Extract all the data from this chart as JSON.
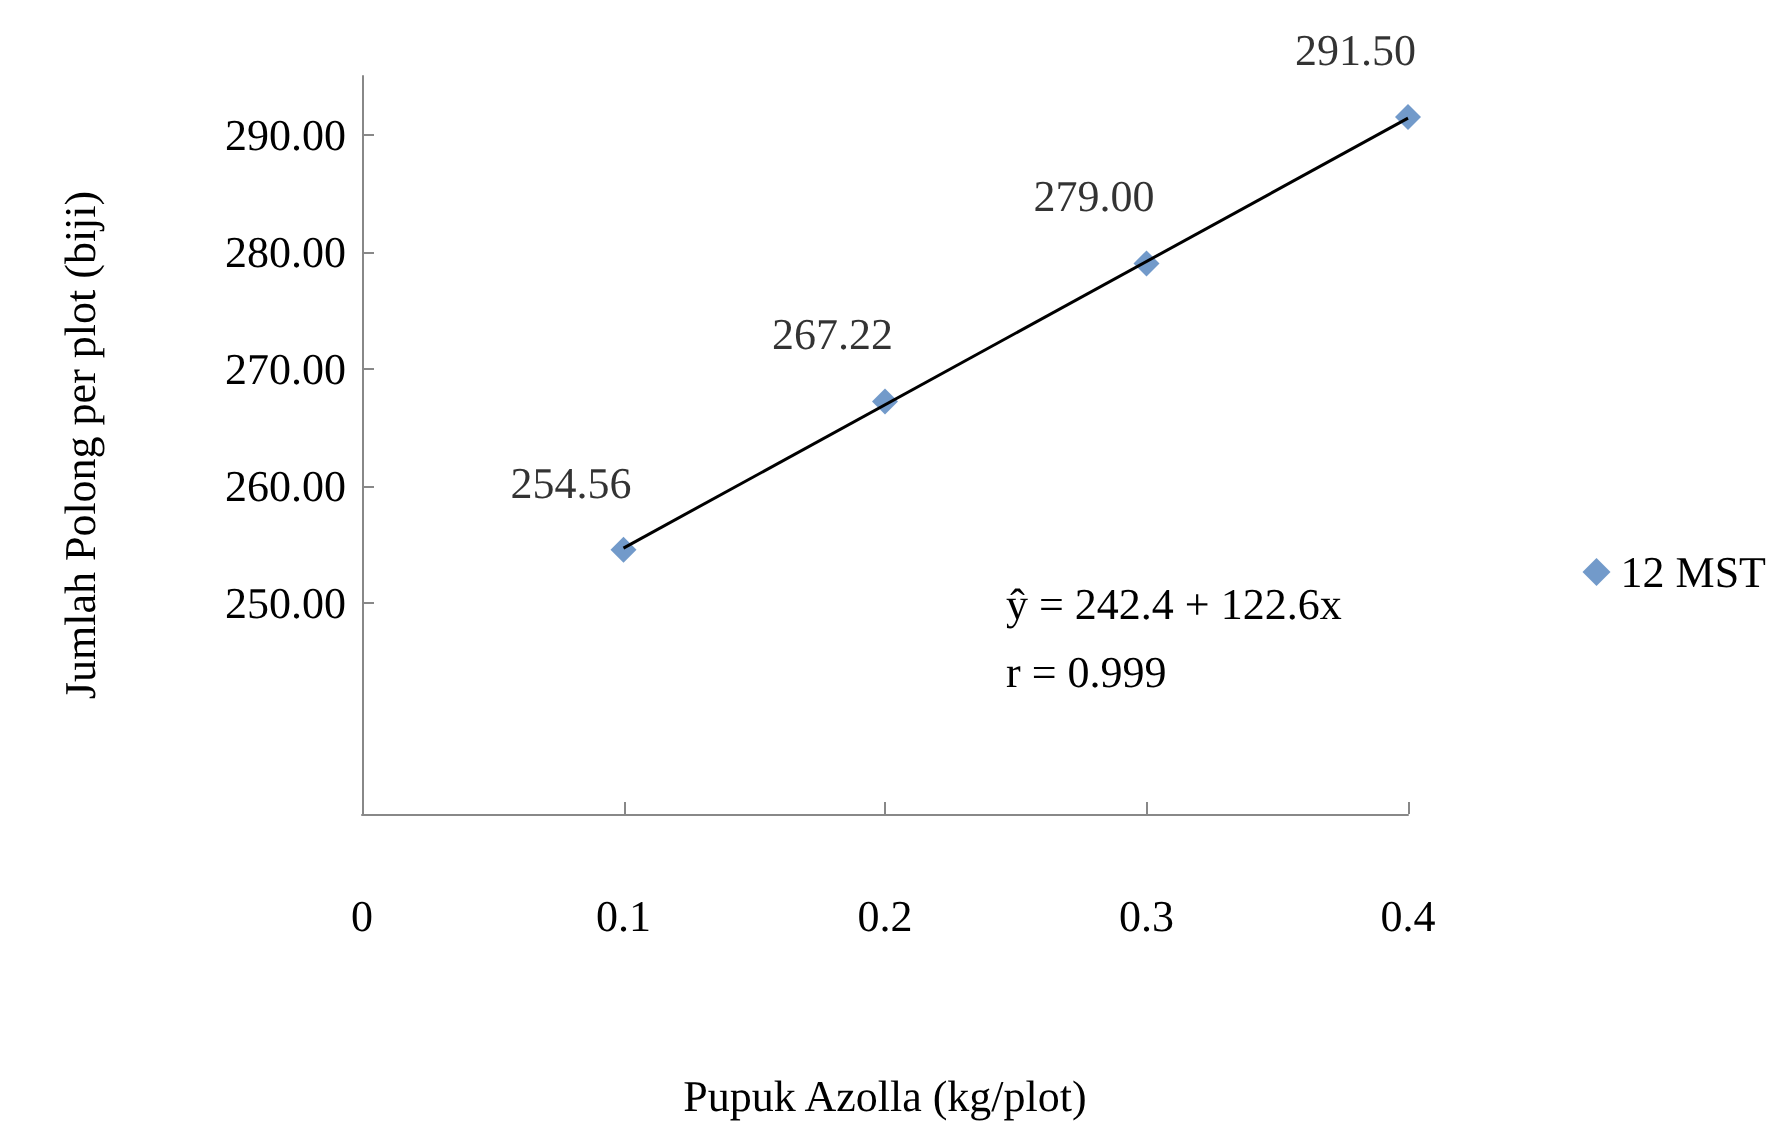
{
  "chart_data": {
    "type": "scatter",
    "xlabel": "Pupuk Azolla (kg/plot)",
    "ylabel": "Jumlah Polong per plot (biji)",
    "x": [
      0.1,
      0.2,
      0.3,
      0.4
    ],
    "series": [
      {
        "name": "12 MST",
        "color": "#4f81bd",
        "values": [
          254.56,
          267.22,
          279.0,
          291.5
        ],
        "value_labels": [
          "254.56",
          "267.22",
          "279.00",
          "291.50"
        ]
      },
      {
        "type": "line",
        "marker": "none",
        "color": "#000000",
        "x": [
          0.1,
          0.4
        ],
        "values": [
          254.7,
          291.4
        ]
      }
    ],
    "annotations": [
      "ŷ = 242.4 + 122.6x",
      "r = 0.999"
    ],
    "xlim": [
      0,
      0.4
    ],
    "xticks": [
      0,
      0.1,
      0.2,
      0.3,
      0.4
    ],
    "ylim": [
      232,
      295
    ],
    "yticks": [
      {
        "value": 250,
        "label": "250.00"
      },
      {
        "value": 260,
        "label": "260.00"
      },
      {
        "value": 270,
        "label": "270.00"
      },
      {
        "value": 280,
        "label": "280.00"
      },
      {
        "value": 290,
        "label": "290.00"
      }
    ],
    "marker": "diamond",
    "legend": "right",
    "grid": false
  }
}
